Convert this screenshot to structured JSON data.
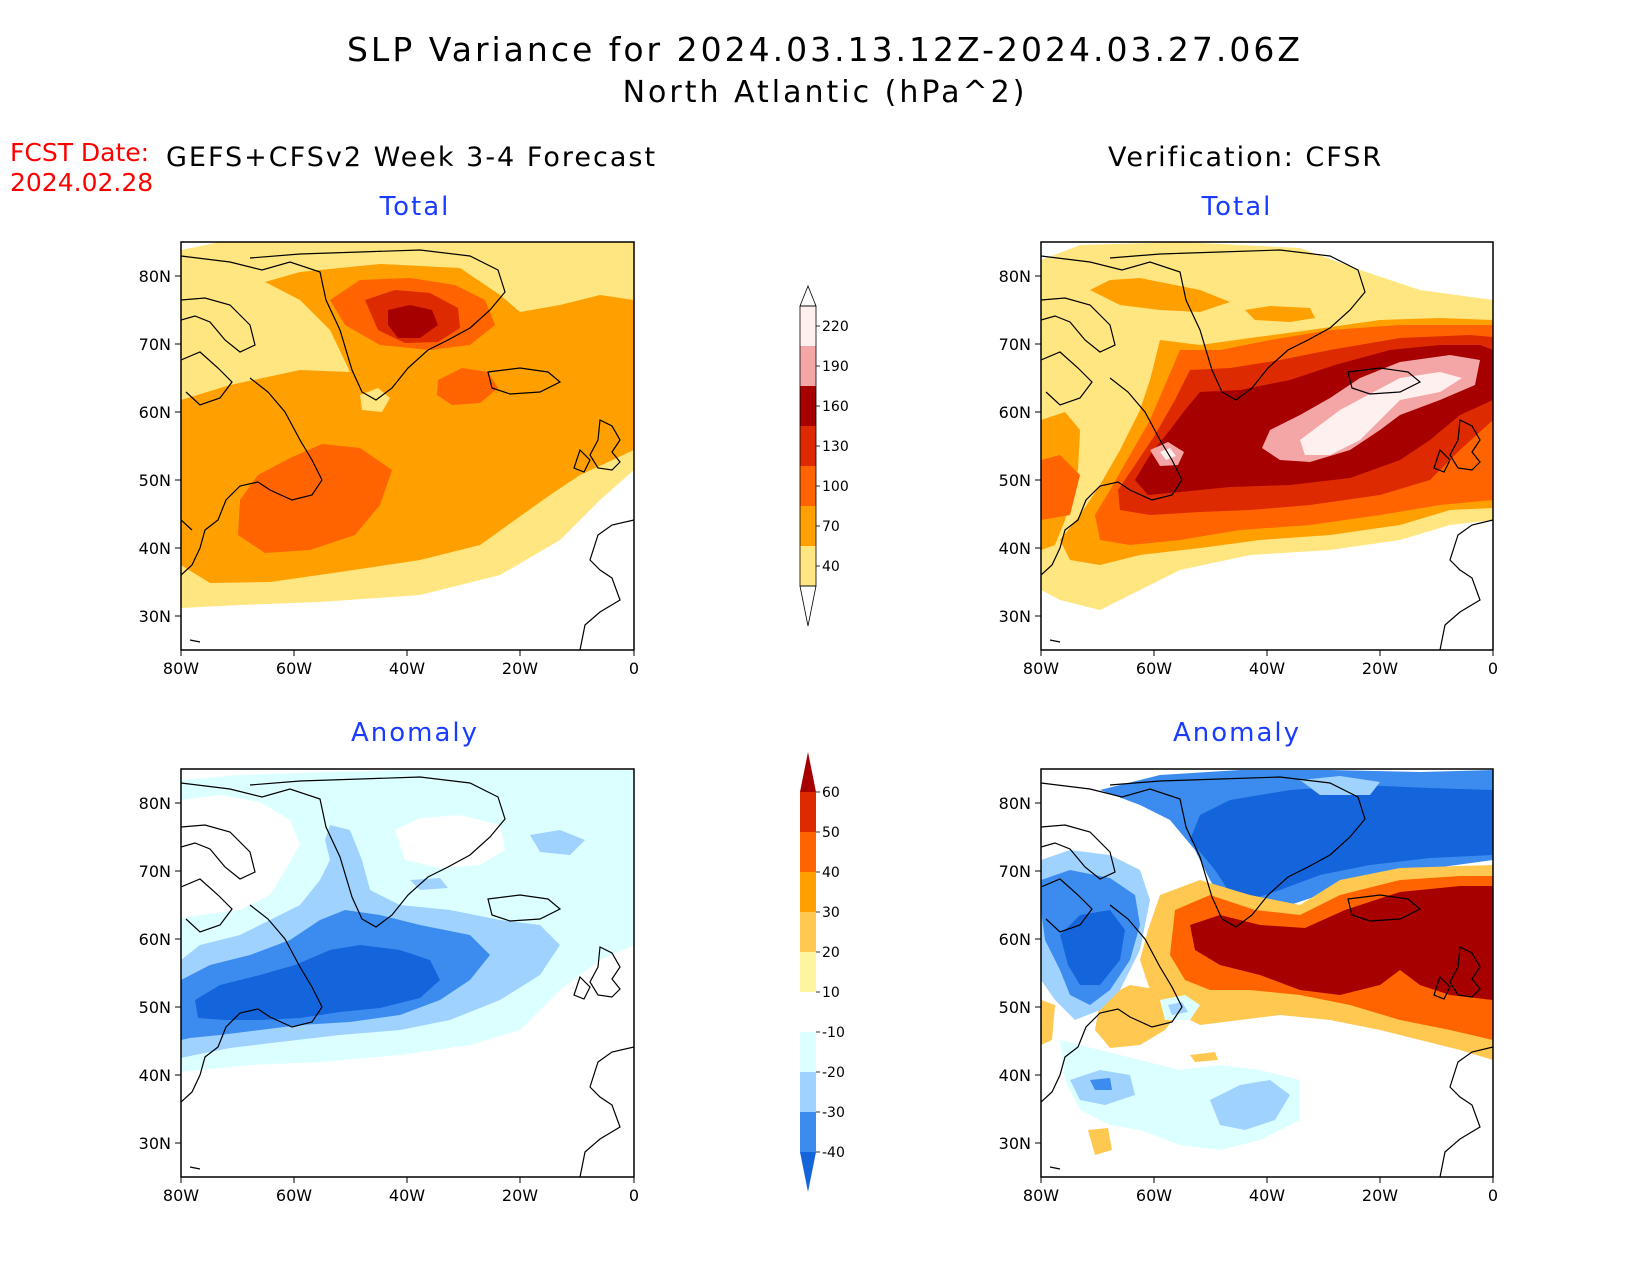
{
  "title": {
    "line1": "SLP Variance for 2024.03.13.12Z-2024.03.27.06Z",
    "line2": "North Atlantic (hPa^2)"
  },
  "forecast_date": {
    "label": "FCST Date:",
    "value": "2024.02.28"
  },
  "left_column_title": "GEFS+CFSv2 Week 3-4 Forecast",
  "right_column_title": "Verification: CFSR",
  "panels": [
    {
      "id": "fcst-total",
      "title": "Total"
    },
    {
      "id": "verif-total",
      "title": "Total"
    },
    {
      "id": "fcst-anomaly",
      "title": "Anomaly"
    },
    {
      "id": "verif-anomaly",
      "title": "Anomaly"
    }
  ],
  "axes": {
    "lat_labels": [
      "80N",
      "70N",
      "60N",
      "50N",
      "40N",
      "30N"
    ],
    "lon_labels": [
      "80W",
      "60W",
      "40W",
      "20W",
      "0"
    ]
  },
  "colorbars": {
    "total": {
      "labels": [
        "220",
        "190",
        "160",
        "130",
        "100",
        "70",
        "40"
      ],
      "colors": [
        "#fff0f0",
        "#f4a6a6",
        "#a60000",
        "#dd2a00",
        "#ff6400",
        "#ffa000",
        "#ffe680"
      ]
    },
    "anomaly": {
      "labels": [
        "60",
        "50",
        "40",
        "30",
        "20",
        "10",
        "-10",
        "-20",
        "-30",
        "-40"
      ],
      "colors": [
        "#a60000",
        "#dd2a00",
        "#ff6400",
        "#ffa000",
        "#ffc850",
        "#fff5a0",
        "#ffffff",
        "#dcffff",
        "#a0d2ff",
        "#3c8cf0",
        "#1464dc"
      ]
    }
  },
  "land_outline_color": "#000000"
}
